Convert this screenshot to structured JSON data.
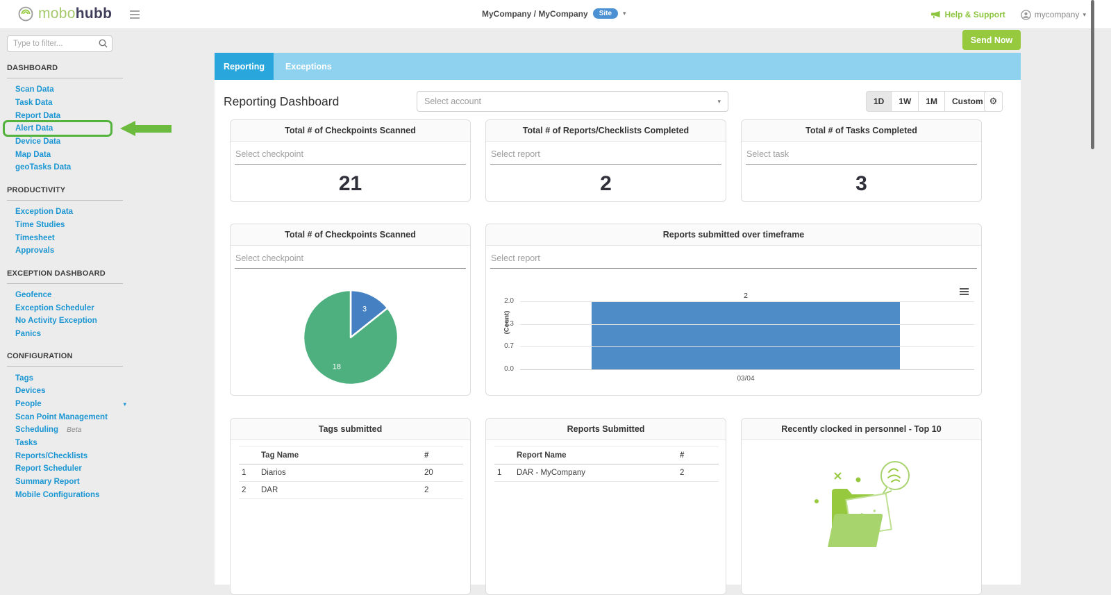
{
  "topbar": {
    "logo_mobo": "mobo",
    "logo_hubb": "hubb",
    "company": "MyCompany / MyCompany",
    "site_badge": "Site",
    "help": "Help & Support",
    "user": "mycompany"
  },
  "sidebar": {
    "filter_placeholder": "Type to filter...",
    "sections": [
      {
        "title": "DASHBOARD",
        "items": [
          {
            "label": "Scan Data"
          },
          {
            "label": "Task Data"
          },
          {
            "label": "Report Data"
          },
          {
            "label": "Alert Data",
            "highlighted": true
          },
          {
            "label": "Device Data"
          },
          {
            "label": "Map Data"
          },
          {
            "label": "geoTasks Data"
          }
        ]
      },
      {
        "title": "PRODUCTIVITY",
        "items": [
          {
            "label": "Exception Data"
          },
          {
            "label": "Time Studies"
          },
          {
            "label": "Timesheet"
          },
          {
            "label": "Approvals"
          }
        ]
      },
      {
        "title": "EXCEPTION DASHBOARD",
        "items": [
          {
            "label": "Geofence"
          },
          {
            "label": "Exception Scheduler"
          },
          {
            "label": "No Activity Exception"
          },
          {
            "label": "Panics"
          }
        ]
      },
      {
        "title": "CONFIGURATION",
        "items": [
          {
            "label": "Tags"
          },
          {
            "label": "Devices"
          },
          {
            "label": "People",
            "caret": true
          },
          {
            "label": "Scan Point Management"
          },
          {
            "label": "Scheduling",
            "badge": "Beta"
          },
          {
            "label": "Tasks"
          },
          {
            "label": "Reports/Checklists"
          },
          {
            "label": "Report Scheduler"
          },
          {
            "label": "Summary Report"
          },
          {
            "label": "Mobile Configurations"
          }
        ]
      }
    ]
  },
  "main": {
    "send_now": "Send Now",
    "tabs": [
      {
        "label": "Reporting",
        "active": true
      },
      {
        "label": "Exceptions",
        "active": false
      }
    ],
    "title": "Reporting Dashboard",
    "account_placeholder": "Select account",
    "range_buttons": [
      "1D",
      "1W",
      "1M",
      "Custom"
    ],
    "active_range": "1D",
    "gear_icon": "gear-icon",
    "stat_cards": [
      {
        "title": "Total # of Checkpoints Scanned",
        "placeholder": "Select checkpoint",
        "value": "21"
      },
      {
        "title": "Total # of Reports/Checklists Completed",
        "placeholder": "Select report",
        "value": "2"
      },
      {
        "title": "Total # of Tasks Completed",
        "placeholder": "Select task",
        "value": "3"
      }
    ],
    "personnel_card": {
      "title": "Recently clocked in personnel - Top 10",
      "empty_illustration": "folder-with-speech-bubble"
    },
    "colors": {
      "accent_green": "#96c93d",
      "link_blue": "#1b96d3",
      "tab_blue": "#29a7dd",
      "tabbar_light_blue": "#8ed2ef",
      "badge_blue": "#4a90d2",
      "annotation_green": "#54b33c"
    }
  },
  "chart_data": [
    {
      "type": "pie",
      "title": "Total # of Checkpoints Scanned",
      "select_placeholder": "Select checkpoint",
      "values": [
        3,
        18
      ],
      "slice_labels": [
        "3",
        "18"
      ],
      "colors": [
        "#4480c2",
        "#4db07e"
      ],
      "legend": "none"
    },
    {
      "type": "bar",
      "title": "Reports submitted over timeframe",
      "select_placeholder": "Select report",
      "categories": [
        "03/04"
      ],
      "values": [
        2
      ],
      "bar_label": "2",
      "ylabel": "(Count)",
      "yticks": [
        "2.0",
        "1.3",
        "0.7",
        "0.0"
      ],
      "ylim": [
        0,
        2
      ],
      "bar_color": "#4e8cc8",
      "grid": true
    },
    {
      "type": "table",
      "title": "Tags submitted",
      "columns": [
        "",
        "Tag Name",
        "#"
      ],
      "rows": [
        [
          "1",
          "Diarios",
          "20"
        ],
        [
          "2",
          "DAR",
          "2"
        ]
      ]
    },
    {
      "type": "table",
      "title": "Reports Submitted",
      "columns": [
        "",
        "Report Name",
        "#"
      ],
      "rows": [
        [
          "1",
          "DAR - MyCompany",
          "2"
        ]
      ]
    }
  ]
}
